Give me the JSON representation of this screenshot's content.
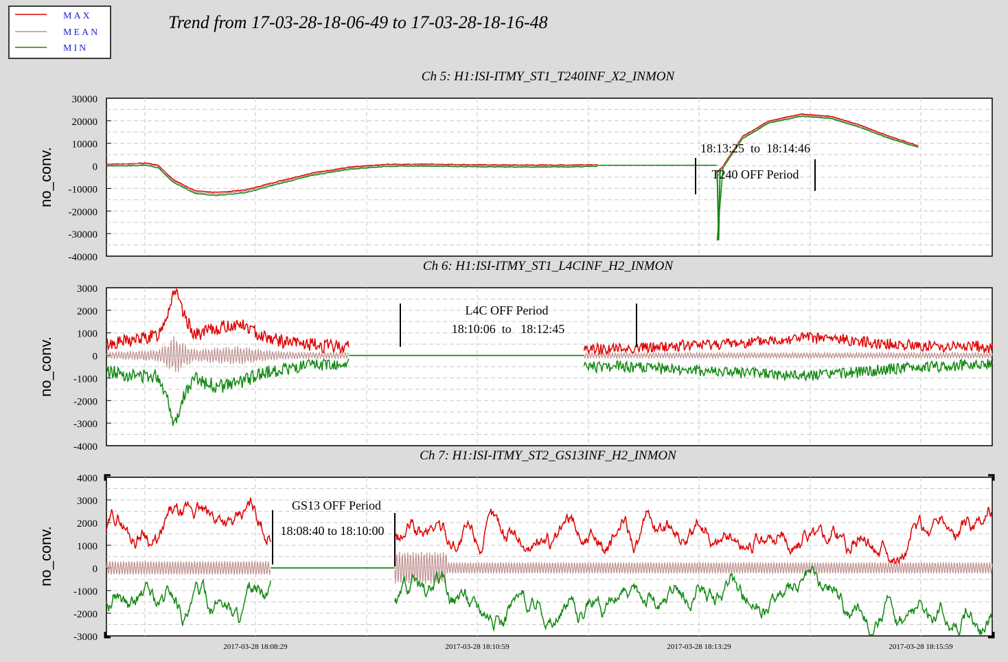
{
  "title": "Trend from 17-03-28-18-06-49 to 17-03-28-18-16-48",
  "legend": {
    "placement": "top-left",
    "entries": [
      {
        "name": "MAX",
        "color": "#dd0000"
      },
      {
        "name": "MEAN",
        "color": "#c09090"
      },
      {
        "name": "MIN",
        "color": "#118811"
      }
    ]
  },
  "colors": {
    "background": "#dcdcdc",
    "plot_bg": "#ffffff",
    "grid": "#c8c8c8",
    "legend_text": "#2222cc"
  },
  "chart_data": [
    {
      "type": "line",
      "title": "Ch 5: H1:ISI-ITMY_ST1_T240INF_X2_INMON",
      "ylabel": "no_conv.",
      "x_range": [
        "18:06:49",
        "18:16:48"
      ],
      "ylim": [
        -40000,
        30000
      ],
      "yticks": [
        30000,
        20000,
        10000,
        0,
        -10000,
        -20000,
        -30000,
        -40000
      ],
      "grid": true,
      "series": [
        {
          "name": "MAX",
          "points": [
            [
              0,
              800
            ],
            [
              15,
              900
            ],
            [
              27,
              1300
            ],
            [
              35,
              300
            ],
            [
              45,
              -6000
            ],
            [
              60,
              -11000
            ],
            [
              75,
              -11800
            ],
            [
              95,
              -10500
            ],
            [
              115,
              -7000
            ],
            [
              140,
              -3000
            ],
            [
              165,
              -500
            ],
            [
              190,
              700
            ],
            [
              220,
              800
            ],
            [
              250,
              500
            ],
            [
              280,
              400
            ],
            [
              310,
              400
            ],
            [
              332,
              600
            ]
          ]
        },
        {
          "name": "MEAN",
          "points": [
            [
              0,
              500
            ],
            [
              15,
              600
            ],
            [
              27,
              900
            ],
            [
              35,
              -200
            ],
            [
              45,
              -6600
            ],
            [
              60,
              -11600
            ],
            [
              75,
              -12400
            ],
            [
              95,
              -11100
            ],
            [
              115,
              -7600
            ],
            [
              140,
              -3500
            ],
            [
              165,
              -900
            ],
            [
              190,
              300
            ],
            [
              220,
              400
            ],
            [
              250,
              100
            ],
            [
              280,
              0
            ],
            [
              310,
              0
            ],
            [
              332,
              200
            ]
          ]
        },
        {
          "name": "MIN",
          "points": [
            [
              0,
              0
            ],
            [
              15,
              0
            ],
            [
              27,
              300
            ],
            [
              35,
              -800
            ],
            [
              45,
              -7200
            ],
            [
              60,
              -12300
            ],
            [
              75,
              -13100
            ],
            [
              95,
              -11800
            ],
            [
              115,
              -8200
            ],
            [
              140,
              -4100
            ],
            [
              165,
              -1400
            ],
            [
              190,
              -200
            ],
            [
              220,
              -100
            ],
            [
              250,
              -400
            ],
            [
              280,
              -500
            ],
            [
              310,
              -500
            ],
            [
              332,
              -200
            ]
          ]
        }
      ],
      "segments_after_gap": {
        "start_s": 413,
        "max": [
          [
            413,
            -3000
          ],
          [
            417,
            0
          ],
          [
            430,
            13000
          ],
          [
            448,
            20000
          ],
          [
            470,
            23000
          ],
          [
            490,
            22000
          ],
          [
            510,
            18000
          ],
          [
            530,
            13000
          ],
          [
            549,
            9000
          ]
        ],
        "mean": [
          [
            413,
            -5000
          ],
          [
            417,
            -400
          ],
          [
            430,
            12500
          ],
          [
            448,
            19500
          ],
          [
            470,
            22500
          ],
          [
            490,
            21500
          ],
          [
            510,
            17500
          ],
          [
            530,
            12500
          ],
          [
            549,
            8600
          ]
        ],
        "min": [
          [
            413,
            -33000
          ],
          [
            417,
            -800
          ],
          [
            430,
            12000
          ],
          [
            448,
            19000
          ],
          [
            470,
            22000
          ],
          [
            490,
            21000
          ],
          [
            510,
            17000
          ],
          [
            530,
            12000
          ],
          [
            549,
            8200
          ]
        ]
      },
      "annotations": [
        {
          "text": "18:13:25  to  18:14:46"
        },
        {
          "text": "T240 OFF Period"
        }
      ],
      "off_period": {
        "start_s": 396,
        "end_s": 477
      }
    },
    {
      "type": "line",
      "title": "Ch 6: H1:ISI-ITMY_ST1_L4CINF_H2_INMON",
      "ylabel": "no_conv.",
      "ylim": [
        -4000,
        3000
      ],
      "yticks": [
        3000,
        2000,
        1000,
        0,
        -1000,
        -2000,
        -3000,
        -4000
      ],
      "grid": true,
      "envelope_max": [
        [
          0,
          500
        ],
        [
          20,
          700
        ],
        [
          35,
          900
        ],
        [
          42,
          2000
        ],
        [
          46,
          3000
        ],
        [
          52,
          1800
        ],
        [
          60,
          900
        ],
        [
          75,
          1200
        ],
        [
          90,
          1400
        ],
        [
          105,
          900
        ],
        [
          120,
          600
        ],
        [
          135,
          500
        ],
        [
          150,
          400
        ],
        [
          164,
          400
        ]
      ],
      "envelope_min": [
        [
          0,
          -700
        ],
        [
          20,
          -900
        ],
        [
          35,
          -900
        ],
        [
          42,
          -2000
        ],
        [
          46,
          -3100
        ],
        [
          52,
          -1800
        ],
        [
          60,
          -1000
        ],
        [
          75,
          -1400
        ],
        [
          90,
          -1200
        ],
        [
          105,
          -800
        ],
        [
          120,
          -600
        ],
        [
          135,
          -500
        ],
        [
          150,
          -400
        ],
        [
          164,
          -400
        ]
      ],
      "envelope2_max": [
        [
          323,
          300
        ],
        [
          350,
          300
        ],
        [
          380,
          400
        ],
        [
          410,
          500
        ],
        [
          440,
          600
        ],
        [
          470,
          800
        ],
        [
          500,
          700
        ],
        [
          530,
          500
        ],
        [
          560,
          400
        ],
        [
          590,
          400
        ],
        [
          600,
          300
        ]
      ],
      "envelope2_min": [
        [
          323,
          -500
        ],
        [
          350,
          -500
        ],
        [
          380,
          -600
        ],
        [
          410,
          -700
        ],
        [
          440,
          -800
        ],
        [
          470,
          -900
        ],
        [
          500,
          -800
        ],
        [
          530,
          -600
        ],
        [
          560,
          -500
        ],
        [
          590,
          -400
        ],
        [
          600,
          -300
        ]
      ],
      "annotations": [
        {
          "text": "L4C OFF Period"
        },
        {
          "text": "18:10:06  to   18:12:45"
        }
      ],
      "off_period": {
        "start_s": 197,
        "end_s": 356
      }
    },
    {
      "type": "line",
      "title": "Ch 7: H1:ISI-ITMY_ST2_GS13INF_H2_INMON",
      "ylabel": "no_conv.",
      "ylim": [
        -3000,
        4000
      ],
      "yticks": [
        4000,
        3000,
        2000,
        1000,
        0,
        -1000,
        -2000,
        -3000
      ],
      "grid": true,
      "xticks": [
        "2017-03-28 18:08:29",
        "2017-03-28 18:10:59",
        "2017-03-28 18:13:29",
        "2017-03-28 18:15:59"
      ],
      "annotations": [
        {
          "text": "GS13 OFF Period"
        },
        {
          "text": "18:08:40 to 18:10:00"
        }
      ],
      "off_period": {
        "start_s": 111,
        "end_s": 191
      }
    }
  ]
}
